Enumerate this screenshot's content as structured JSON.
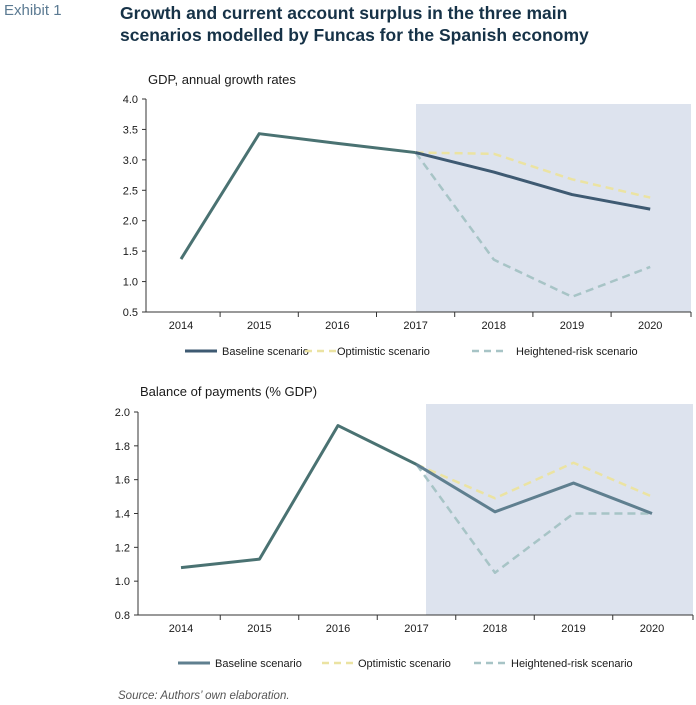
{
  "header": {
    "exhibit_label": "Exhibit 1",
    "title_line1": "Growth and current account surplus in the three main",
    "title_line2": "scenarios modelled by Funcas for the Spanish economy"
  },
  "source": "Source: Authors’ own elaboration.",
  "colors": {
    "baseline_top": "#3e5a72",
    "baseline_bottom": "#5f7f8f",
    "history": "#4a7272",
    "optimistic": "#ebe3a2",
    "risk": "#a7c4c6",
    "shade": "#dde3ee",
    "axis": "#333333"
  },
  "chart_data": [
    {
      "type": "line",
      "title": "GDP, annual growth rates",
      "categories": [
        "2014",
        "2015",
        "2016",
        "2017",
        "2018",
        "2019",
        "2020"
      ],
      "ylim": [
        0.5,
        4.0
      ],
      "yticks": [
        "4.0",
        "3.5",
        "3.0",
        "2.5",
        "2.0",
        "1.5",
        "1.0",
        "0.5"
      ],
      "shaded_from": "2017",
      "history": [
        1.37,
        3.43,
        3.27,
        3.12
      ],
      "series": [
        {
          "name": "Baseline scenario",
          "style": "solid",
          "values": [
            null,
            null,
            null,
            3.12,
            2.8,
            2.43,
            2.19
          ]
        },
        {
          "name": "Optimistic scenario",
          "style": "dashed",
          "values": [
            null,
            null,
            null,
            3.12,
            3.1,
            2.68,
            2.38
          ]
        },
        {
          "name": "Heightened-risk scenario",
          "style": "dashed",
          "values": [
            null,
            null,
            null,
            3.12,
            1.36,
            0.75,
            1.24
          ]
        }
      ],
      "legend": [
        "Baseline scenario",
        "Optimistic scenario",
        "Heightened-risk scenario"
      ]
    },
    {
      "type": "line",
      "title": "Balance of payments (% GDP)",
      "categories": [
        "2014",
        "2015",
        "2016",
        "2017",
        "2018",
        "2019",
        "2020"
      ],
      "ylim": [
        0.8,
        2.0
      ],
      "yticks": [
        "2.0",
        "1.8",
        "1.6",
        "1.4",
        "1.2",
        "1.0",
        "0.8"
      ],
      "shaded_from": "2017",
      "history": [
        1.08,
        1.13,
        1.92,
        1.69
      ],
      "series": [
        {
          "name": "Baseline scenario",
          "style": "solid",
          "values": [
            null,
            null,
            null,
            1.69,
            1.41,
            1.58,
            1.4
          ]
        },
        {
          "name": "Optimistic scenario",
          "style": "dashed",
          "values": [
            null,
            null,
            null,
            1.69,
            1.49,
            1.7,
            1.5
          ]
        },
        {
          "name": "Heightened-risk scenario",
          "style": "dashed",
          "values": [
            null,
            null,
            null,
            1.69,
            1.05,
            1.4,
            1.4
          ]
        }
      ],
      "legend": [
        "Baseline scenario",
        "Optimistic scenario",
        "Heightened-risk scenario"
      ]
    }
  ]
}
